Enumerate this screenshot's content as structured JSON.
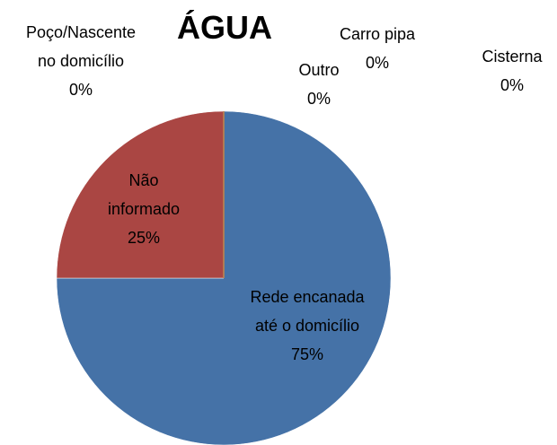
{
  "chart_data": {
    "type": "pie",
    "title": "ÁGUA",
    "categories": [
      "Rede encanada\naté o domicílio",
      "Não\ninformado",
      "Poço/Nascente\nno domicílio",
      "Outro",
      "Carro pipa",
      "Cisterna"
    ],
    "values": [
      75,
      25,
      0,
      0,
      0,
      0
    ],
    "value_labels": [
      "75%",
      "25%",
      "0%",
      "0%",
      "0%",
      "0%"
    ],
    "colors": [
      "#4572a7",
      "#aa4643",
      "#89a54e",
      "#71588f",
      "#4198af",
      "#db843d"
    ]
  }
}
